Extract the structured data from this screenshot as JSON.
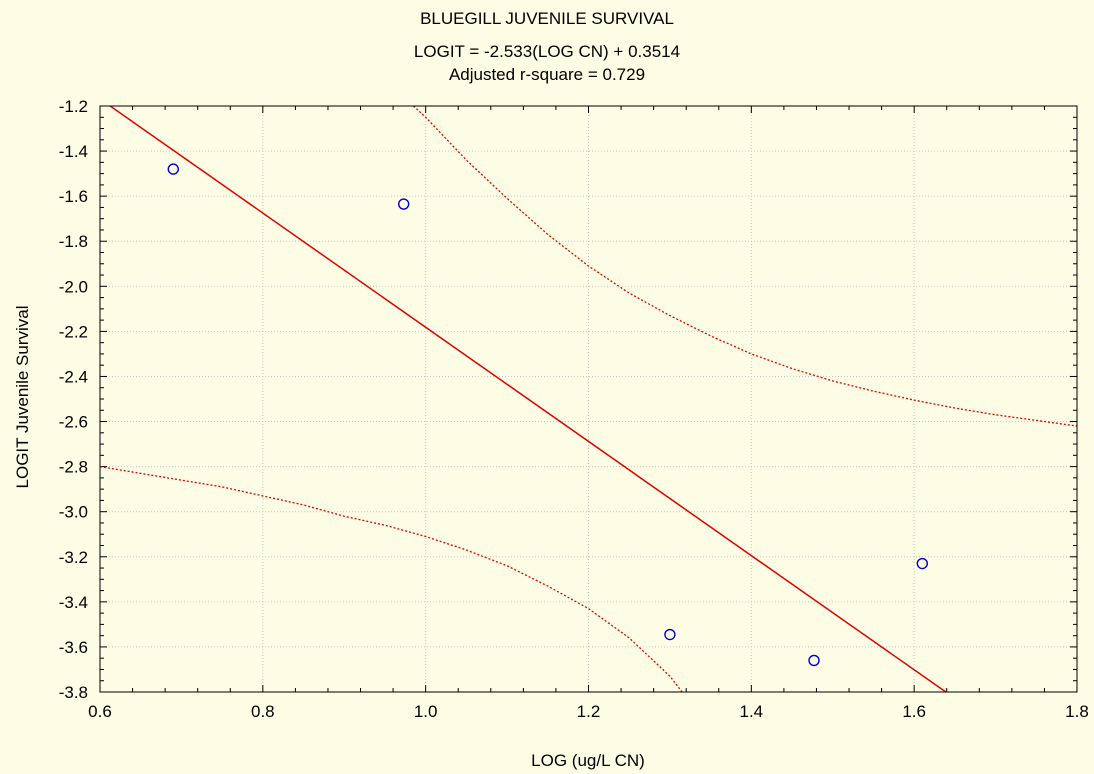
{
  "chart_data": {
    "type": "scatter",
    "title": "BLUEGILL JUVENILE SURVIVAL",
    "subtitle": "LOGIT = -2.533(LOG CN) + 0.3514",
    "subtitle2": "Adjusted r-square = 0.729",
    "xlabel": "LOG (ug/L CN)",
    "ylabel": "LOGIT Juvenile Survival",
    "xlim": [
      0.6,
      1.8
    ],
    "ylim": [
      -3.8,
      -1.2
    ],
    "xticks": [
      0.6,
      0.8,
      1.0,
      1.2,
      1.4,
      1.6,
      1.8
    ],
    "xtick_labels": [
      "0.6",
      "0.8",
      "1.0",
      "1.2",
      "1.4",
      "1.6",
      "1.8"
    ],
    "yticks": [
      -1.2,
      -1.4,
      -1.6,
      -1.8,
      -2.0,
      -2.2,
      -2.4,
      -2.6,
      -2.8,
      -3.0,
      -3.2,
      -3.4,
      -3.6,
      -3.8
    ],
    "ytick_labels": [
      "-1.2",
      "-1.4",
      "-1.6",
      "-1.8",
      "-2.0",
      "-2.2",
      "-2.4",
      "-2.6",
      "-2.8",
      "-3.0",
      "-3.2",
      "-3.4",
      "-3.6",
      "-3.8"
    ],
    "grid": true,
    "points": {
      "x": [
        0.69,
        0.973,
        1.3,
        1.477,
        1.61
      ],
      "y": [
        -1.48,
        -1.635,
        -3.545,
        -3.66,
        -3.23
      ],
      "color": "#0000cc",
      "marker": "open-circle"
    },
    "fit_line": {
      "slope": -2.533,
      "intercept": 0.3514,
      "color": "#e00000",
      "style": "solid"
    },
    "confidence_upper": {
      "x": [
        0.985,
        1.0,
        1.05,
        1.1,
        1.15,
        1.2,
        1.25,
        1.3,
        1.35,
        1.4,
        1.45,
        1.5,
        1.55,
        1.6,
        1.65,
        1.7,
        1.75,
        1.8
      ],
      "y": [
        -1.2,
        -1.25,
        -1.44,
        -1.61,
        -1.77,
        -1.91,
        -2.03,
        -2.13,
        -2.22,
        -2.3,
        -2.365,
        -2.42,
        -2.465,
        -2.505,
        -2.54,
        -2.57,
        -2.595,
        -2.62
      ],
      "color": "#e00000",
      "style": "dotted"
    },
    "confidence_lower": {
      "x": [
        0.6,
        0.65,
        0.7,
        0.75,
        0.8,
        0.85,
        0.9,
        0.95,
        1.0,
        1.05,
        1.1,
        1.15,
        1.2,
        1.25,
        1.3,
        1.315
      ],
      "y": [
        -2.8,
        -2.83,
        -2.86,
        -2.89,
        -2.93,
        -2.97,
        -3.02,
        -3.06,
        -3.11,
        -3.17,
        -3.24,
        -3.33,
        -3.43,
        -3.56,
        -3.73,
        -3.8
      ],
      "color": "#e00000",
      "style": "dotted"
    }
  }
}
